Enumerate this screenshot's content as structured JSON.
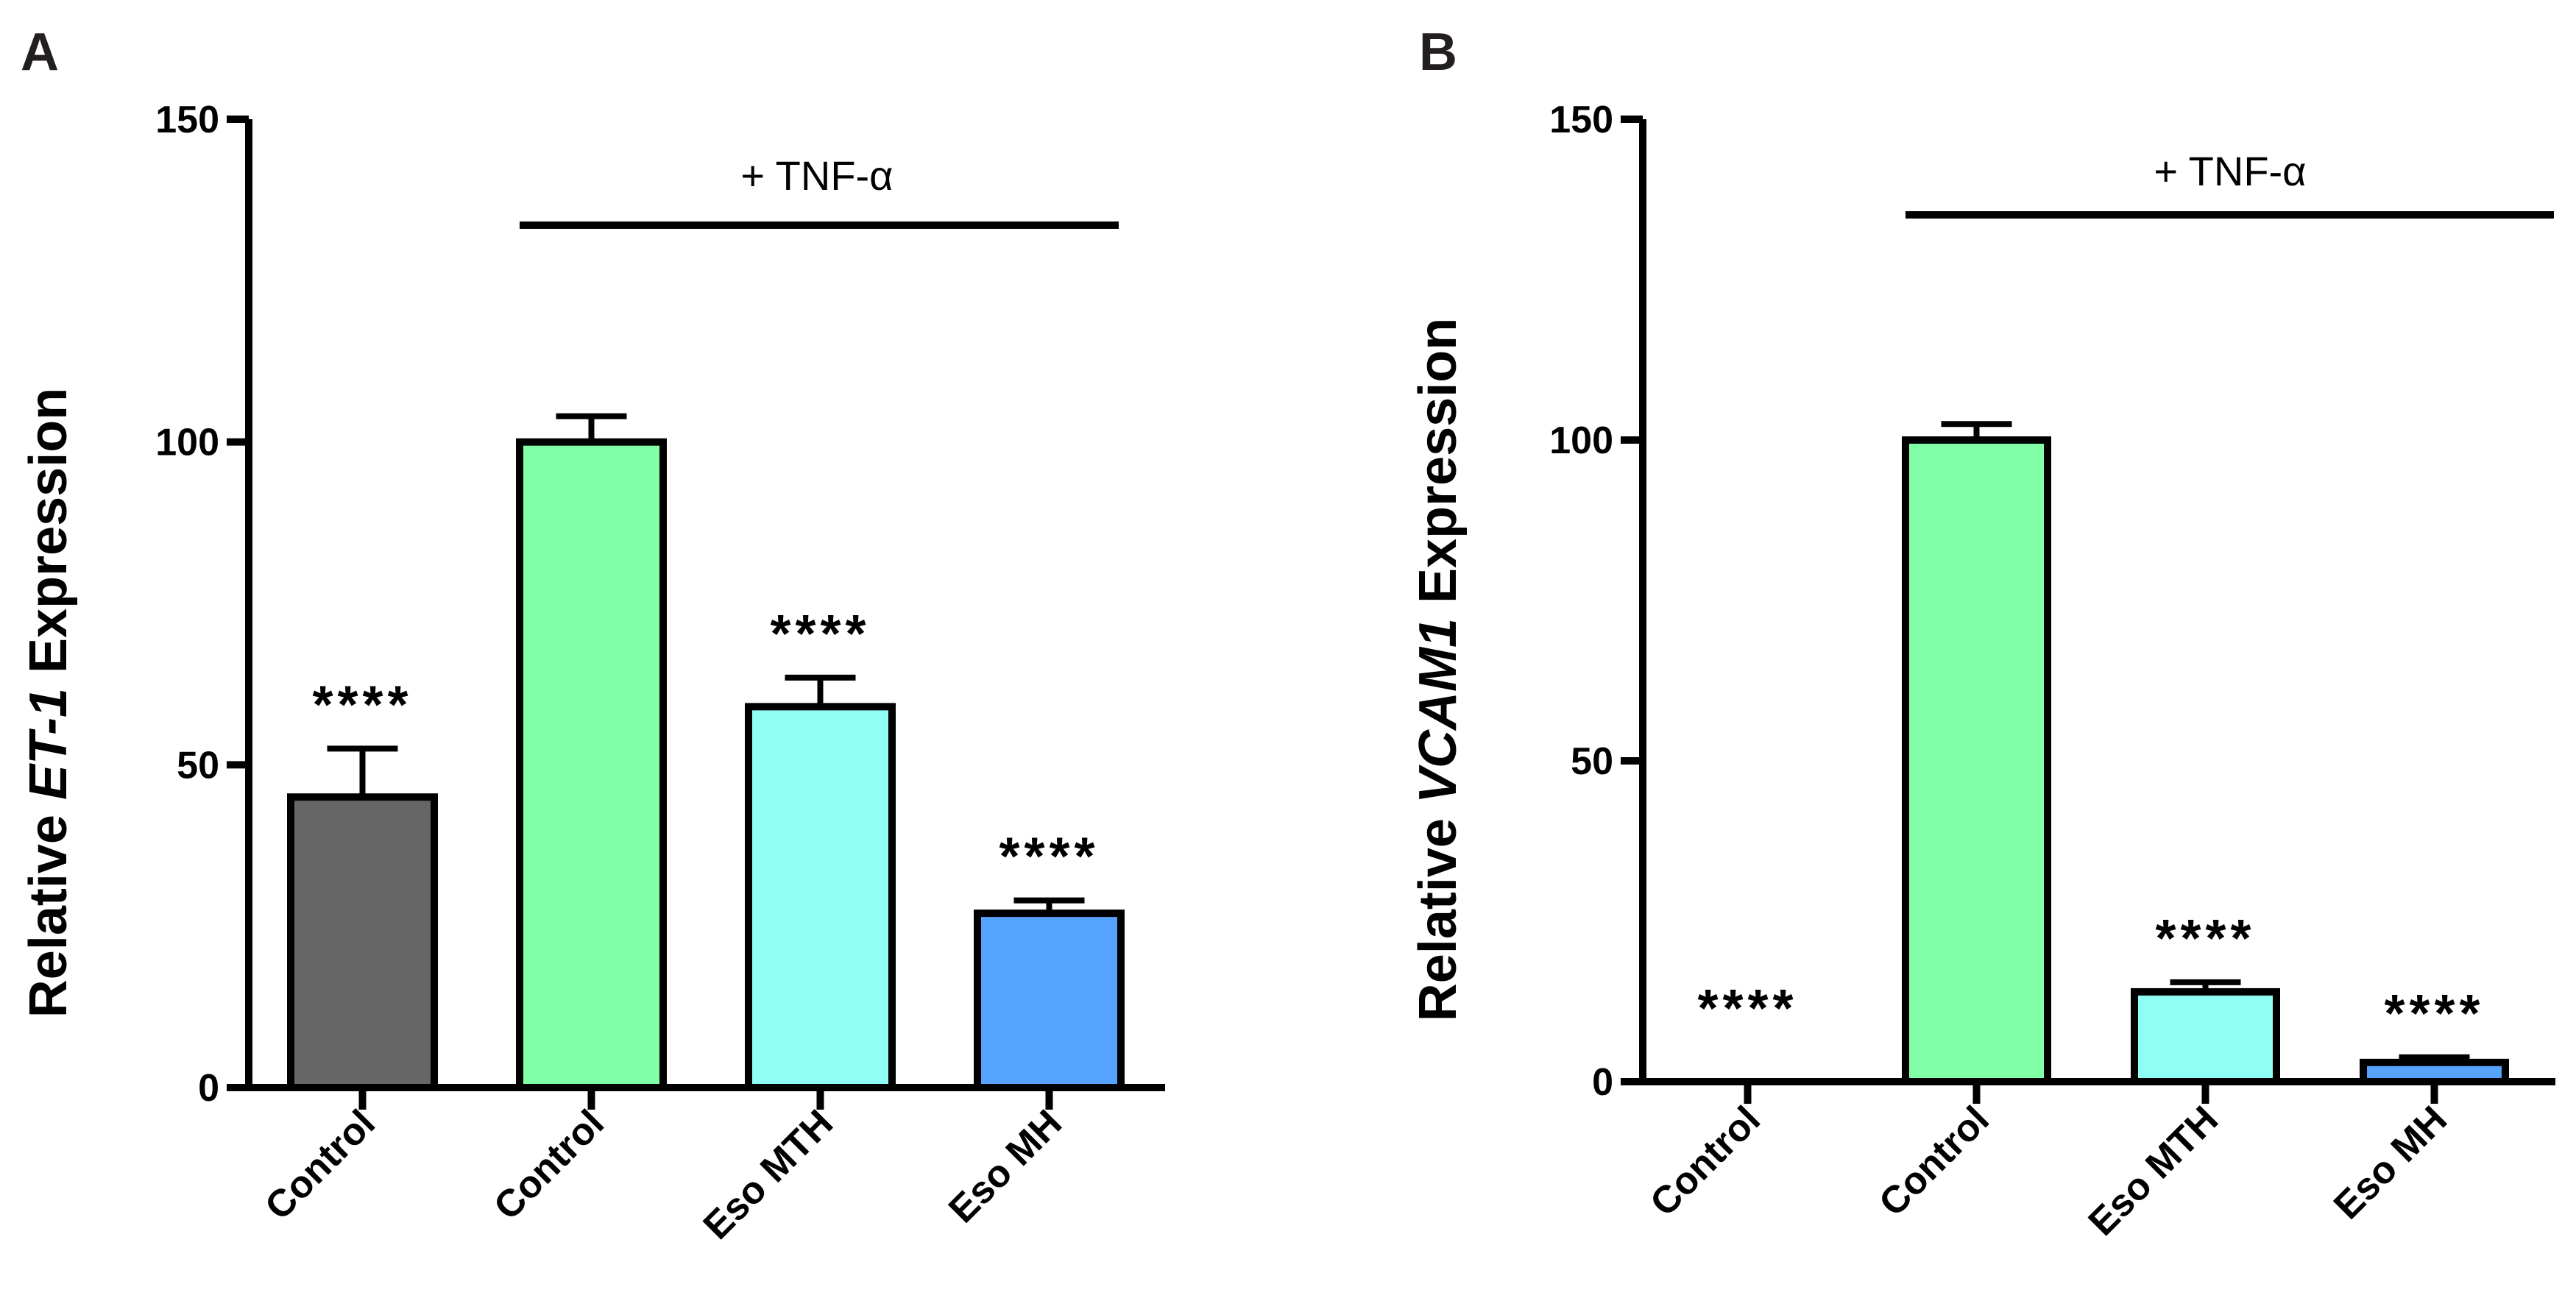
{
  "chart_data": [
    {
      "type": "bar",
      "panel_label": "A",
      "title": "",
      "ylabel_prefix": "Relative ",
      "ylabel_gene": "ET-1",
      "ylabel_suffix": " Expression",
      "xlabel": "",
      "ylim": [
        0,
        150
      ],
      "yticks": [
        0,
        50,
        100,
        150
      ],
      "group_label": "+ TNF-α",
      "group_start_index": 1,
      "categories": [
        "Control",
        "Control",
        "Eso MTH",
        "Eso MH"
      ],
      "values": [
        45,
        100,
        59,
        27
      ],
      "errors": [
        7.5,
        4,
        4.5,
        2
      ],
      "significance": [
        "****",
        "",
        "****",
        "****"
      ],
      "colors": [
        "#666666",
        "#80ffa6",
        "#8ffff5",
        "#56a3ff"
      ]
    },
    {
      "type": "bar",
      "panel_label": "B",
      "title": "",
      "ylabel_prefix": "Relative ",
      "ylabel_gene": "VCAM1",
      "ylabel_suffix": " Expression",
      "xlabel": "",
      "ylim": [
        0,
        150
      ],
      "yticks": [
        0,
        50,
        100,
        150
      ],
      "group_label": "+ TNF-α",
      "group_start_index": 1,
      "categories": [
        "Control",
        "Control",
        "Eso MTH",
        "Eso MH"
      ],
      "values": [
        0,
        100,
        14,
        3
      ],
      "errors": [
        0,
        2.5,
        1.5,
        0.8
      ],
      "significance": [
        "****",
        "",
        "****",
        "****"
      ],
      "colors": [
        "#666666",
        "#80ffa6",
        "#8ffff5",
        "#56a3ff"
      ]
    }
  ]
}
